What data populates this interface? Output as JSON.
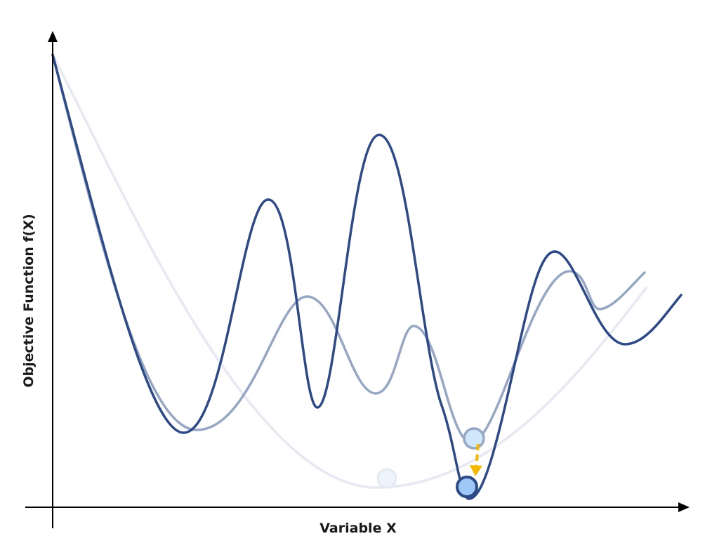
{
  "diagram": {
    "x_axis_label": "Variable X",
    "y_axis_label": "Objective Function f(X)",
    "colors": {
      "axis": "#000000",
      "rugged_curve": "#2e4a86",
      "medium_curve": "#97a7c3",
      "smooth_curve": "#e6e9f2",
      "ball_fill": "#9ec8f5",
      "ball_fill_light": "#cfe6fb",
      "ball_fill_faint": "#eef4fc",
      "arrow": "#f5b800"
    },
    "curves": [
      {
        "name": "rugged-curve",
        "stage": "most rugged"
      },
      {
        "name": "medium-curve",
        "stage": "partially smoothed"
      },
      {
        "name": "smooth-curve",
        "stage": "fully smoothed"
      }
    ],
    "markers": [
      {
        "name": "ball-on-smooth-curve",
        "icon": "circle-icon"
      },
      {
        "name": "ball-on-medium-curve",
        "icon": "circle-icon"
      },
      {
        "name": "ball-on-rugged-curve",
        "icon": "circle-icon"
      }
    ],
    "arrow_icon": "dashed-arrow-down-icon"
  }
}
